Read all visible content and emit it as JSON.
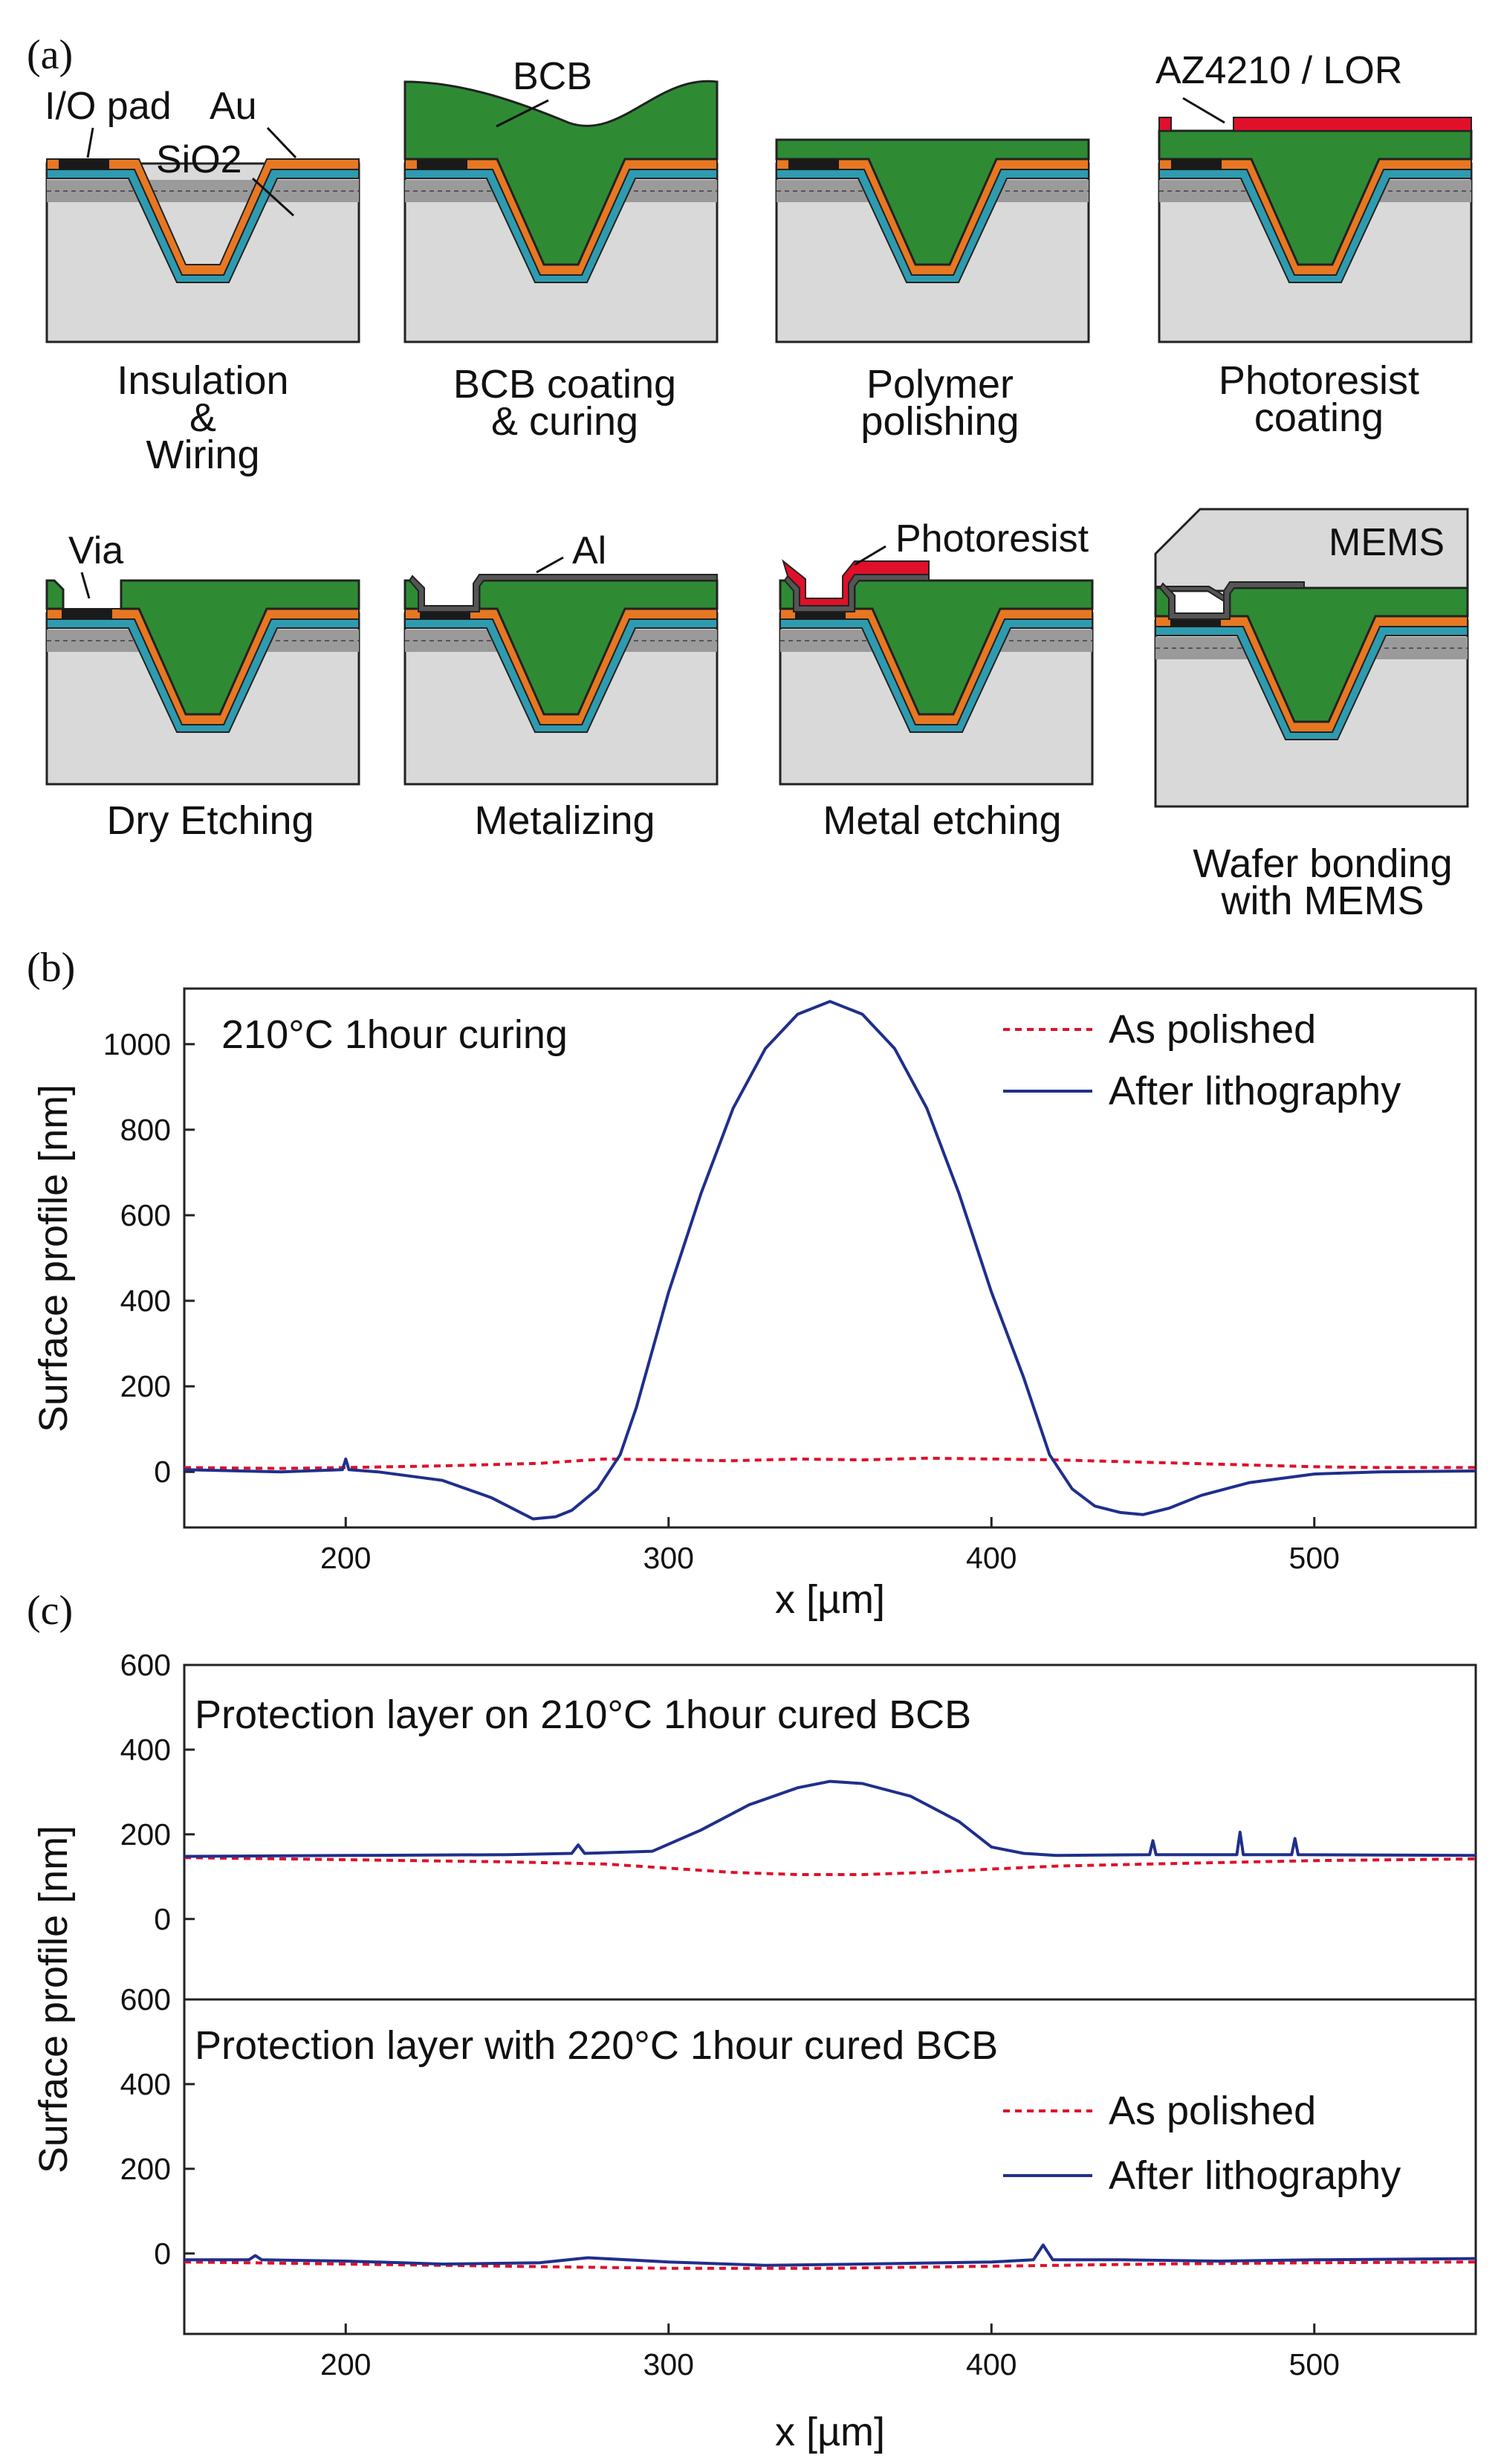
{
  "panel_labels": {
    "a": "(a)",
    "b": "(b)",
    "c": "(c)"
  },
  "process": {
    "steps": [
      {
        "caption": [
          "Insulation",
          "&",
          "Wiring"
        ]
      },
      {
        "caption": [
          "BCB coating",
          "& curing"
        ]
      },
      {
        "caption": [
          "Polymer",
          "polishing"
        ]
      },
      {
        "caption": [
          "Photoresist",
          "coating"
        ]
      },
      {
        "caption": [
          "Dry Etching"
        ]
      },
      {
        "caption": [
          "Metalizing"
        ]
      },
      {
        "caption": [
          "Metal etching"
        ]
      },
      {
        "caption": [
          "Wafer bonding",
          "with MEMS"
        ]
      }
    ],
    "annotations": {
      "io_pad": "I/O pad",
      "au": "Au",
      "sio2": "SiO2",
      "bcb": "BCB",
      "az": "AZ4210 / LOR",
      "via": "Via",
      "al": "Al",
      "photoresist": "Photoresist",
      "mems": "MEMS"
    },
    "colors": {
      "substrate": "#d9d9d9",
      "insulator": "#2e9bb0",
      "gold": "#e87722",
      "bcb": "#2e8b34",
      "resist": "#e0102a",
      "metal": "#555555",
      "pad": "#1a1a1a"
    }
  },
  "chart_data": [
    {
      "type": "line",
      "panel": "(b)",
      "title": "210°C 1hour curing",
      "xlabel": "x [µm]",
      "ylabel": "Surface profile [nm]",
      "xlim": [
        150,
        550
      ],
      "ylim": [
        -130,
        1130
      ],
      "xticks": [
        200,
        300,
        400,
        500
      ],
      "yticks": [
        0,
        200,
        400,
        600,
        800,
        1000
      ],
      "series": [
        {
          "name": "As polished",
          "color": "#e0102a",
          "dash": true,
          "x": [
            150,
            180,
            200,
            230,
            260,
            280,
            300,
            320,
            340,
            360,
            380,
            400,
            420,
            440,
            460,
            480,
            500,
            520,
            550
          ],
          "y": [
            10,
            8,
            10,
            14,
            20,
            30,
            28,
            26,
            30,
            28,
            32,
            30,
            28,
            24,
            20,
            16,
            12,
            10,
            10
          ]
        },
        {
          "name": "After lithography",
          "color": "#1f2f8c",
          "dash": false,
          "x": [
            150,
            180,
            199,
            200,
            201,
            210,
            230,
            245,
            258,
            265,
            270,
            278,
            285,
            290,
            300,
            310,
            320,
            330,
            340,
            350,
            360,
            370,
            380,
            390,
            400,
            410,
            418,
            425,
            432,
            440,
            447,
            455,
            465,
            480,
            500,
            520,
            550
          ],
          "y": [
            5,
            0,
            5,
            30,
            5,
            0,
            -20,
            -60,
            -110,
            -105,
            -90,
            -40,
            40,
            150,
            420,
            650,
            850,
            990,
            1070,
            1100,
            1070,
            990,
            850,
            650,
            420,
            220,
            40,
            -40,
            -80,
            -95,
            -100,
            -85,
            -55,
            -25,
            -5,
            0,
            2
          ]
        }
      ],
      "legend": "top-right"
    },
    {
      "type": "line",
      "panel": "(c) top",
      "title": "Protection layer on 210°C 1hour cured BCB",
      "xlabel": "",
      "ylabel": "Surface profile [nm]",
      "xlim": [
        150,
        550
      ],
      "ylim": [
        -190,
        600
      ],
      "yticks": [
        0,
        200,
        400,
        600
      ],
      "series": [
        {
          "name": "As polished",
          "color": "#e0102a",
          "dash": true,
          "x": [
            150,
            200,
            250,
            280,
            300,
            320,
            340,
            360,
            380,
            400,
            420,
            450,
            500,
            550
          ],
          "y": [
            145,
            140,
            135,
            130,
            120,
            110,
            105,
            105,
            110,
            118,
            125,
            130,
            138,
            142
          ]
        },
        {
          "name": "After lithography",
          "color": "#1f2f8c",
          "dash": false,
          "x": [
            150,
            200,
            250,
            270,
            272,
            274,
            295,
            310,
            325,
            340,
            350,
            360,
            375,
            390,
            400,
            410,
            420,
            449,
            450,
            451,
            476,
            477,
            478,
            493,
            494,
            495,
            550
          ],
          "y": [
            148,
            150,
            152,
            155,
            175,
            155,
            160,
            210,
            270,
            310,
            325,
            320,
            290,
            230,
            170,
            155,
            150,
            152,
            185,
            152,
            152,
            205,
            152,
            152,
            190,
            152,
            150
          ]
        }
      ]
    },
    {
      "type": "line",
      "panel": "(c) bottom",
      "title": "Protection layer with 220°C 1hour cured BCB",
      "xlabel": "x [µm]",
      "ylabel": "Surface profile [nm]",
      "xlim": [
        150,
        550
      ],
      "ylim": [
        -190,
        600
      ],
      "xticks": [
        200,
        300,
        400,
        500
      ],
      "yticks": [
        0,
        200,
        400,
        600
      ],
      "series": [
        {
          "name": "As polished",
          "color": "#e0102a",
          "dash": true,
          "x": [
            150,
            200,
            250,
            300,
            350,
            400,
            450,
            500,
            550
          ],
          "y": [
            -20,
            -25,
            -30,
            -35,
            -35,
            -30,
            -25,
            -22,
            -20
          ]
        },
        {
          "name": "After lithography",
          "color": "#1f2f8c",
          "dash": false,
          "x": [
            150,
            170,
            172,
            174,
            200,
            230,
            260,
            275,
            300,
            330,
            360,
            400,
            413,
            416,
            419,
            440,
            470,
            500,
            550
          ],
          "y": [
            -15,
            -15,
            -5,
            -15,
            -18,
            -25,
            -22,
            -10,
            -20,
            -28,
            -25,
            -20,
            -15,
            20,
            -15,
            -15,
            -18,
            -15,
            -12
          ]
        }
      ],
      "legend": "right"
    }
  ],
  "legend_labels": {
    "as_polished": "As polished",
    "after_litho": "After lithography"
  }
}
